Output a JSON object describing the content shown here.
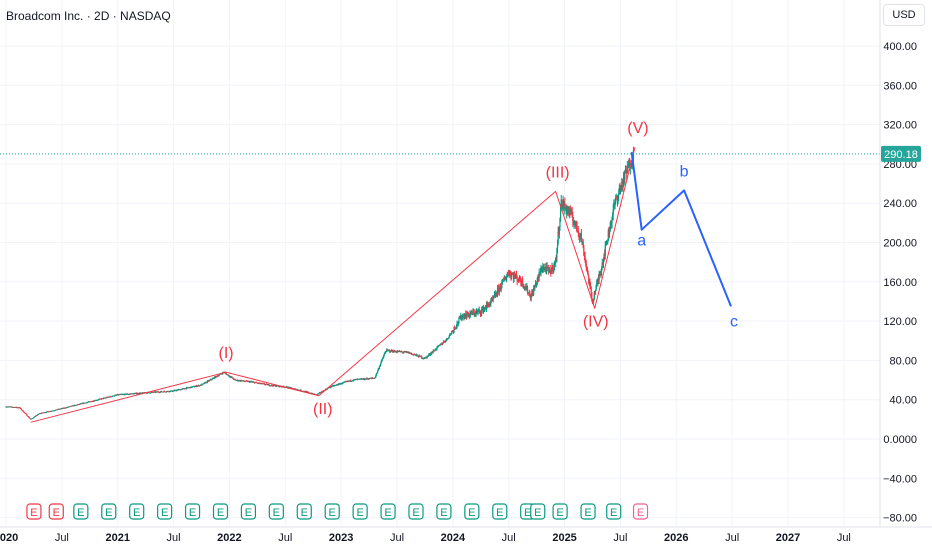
{
  "header": {
    "title": "Broadcom Inc. · 2D · NASDAQ",
    "currency": "USD"
  },
  "price_tag": {
    "value": "290.18",
    "color": "#26a69a"
  },
  "colors": {
    "impulse": "#f23645",
    "correction": "#2962ff",
    "up": "#089981",
    "down": "#f23645",
    "earn": "#089981",
    "earn_upcoming": "#f06292",
    "grid": "#f0f3fa"
  },
  "event_markers": [
    {
      "date": 2020.25,
      "label": "E",
      "kind": "red"
    },
    {
      "date": 2020.45,
      "label": "E",
      "kind": "red"
    },
    {
      "date": 2020.67,
      "label": "E",
      "kind": "green"
    },
    {
      "date": 2020.92,
      "label": "E",
      "kind": "green"
    },
    {
      "date": 2021.17,
      "label": "E",
      "kind": "green"
    },
    {
      "date": 2021.42,
      "label": "E",
      "kind": "green"
    },
    {
      "date": 2021.67,
      "label": "E",
      "kind": "green"
    },
    {
      "date": 2021.92,
      "label": "E",
      "kind": "green"
    },
    {
      "date": 2022.17,
      "label": "E",
      "kind": "green"
    },
    {
      "date": 2022.42,
      "label": "E",
      "kind": "green"
    },
    {
      "date": 2022.67,
      "label": "E",
      "kind": "green"
    },
    {
      "date": 2022.92,
      "label": "E",
      "kind": "green"
    },
    {
      "date": 2023.17,
      "label": "E",
      "kind": "green"
    },
    {
      "date": 2023.42,
      "label": "E",
      "kind": "green"
    },
    {
      "date": 2023.67,
      "label": "E",
      "kind": "green"
    },
    {
      "date": 2023.92,
      "label": "E",
      "kind": "green"
    },
    {
      "date": 2024.17,
      "label": "E",
      "kind": "green"
    },
    {
      "date": 2024.42,
      "label": "E",
      "kind": "green"
    },
    {
      "date": 2024.67,
      "label": "E",
      "kind": "green"
    },
    {
      "date": 2024.76,
      "label": "E",
      "kind": "green"
    },
    {
      "date": 2024.96,
      "label": "E",
      "kind": "green"
    },
    {
      "date": 2025.21,
      "label": "E",
      "kind": "green"
    },
    {
      "date": 2025.44,
      "label": "E",
      "kind": "green"
    },
    {
      "date": 2025.68,
      "label": "E",
      "kind": "upcoming"
    }
  ],
  "chart_data": {
    "type": "line",
    "title": "Broadcom Inc. · 2D · NASDAQ",
    "ylabel": "USD",
    "xlim": [
      2020.0,
      2027.8
    ],
    "ylim": [
      -82,
      440
    ],
    "log_scale": false,
    "grid": true,
    "y_ticks": [
      400,
      360,
      320,
      280,
      240,
      200,
      160,
      120,
      80,
      40,
      0,
      -40,
      -80
    ],
    "y_tick_labels": [
      "400.00",
      "360.00",
      "320.00",
      "280.00",
      "240.00",
      "200.00",
      "160.00",
      "120.00",
      "80.00",
      "40.00",
      "0.0000",
      "−40.00",
      "−80.00"
    ],
    "x_ticks": [
      {
        "x": 2020.0,
        "label": "2020"
      },
      {
        "x": 2020.5,
        "label": "Jul"
      },
      {
        "x": 2021.0,
        "label": "2021"
      },
      {
        "x": 2021.5,
        "label": "Jul"
      },
      {
        "x": 2022.0,
        "label": "2022"
      },
      {
        "x": 2022.5,
        "label": "Jul"
      },
      {
        "x": 2023.0,
        "label": "2023"
      },
      {
        "x": 2023.5,
        "label": "Jul"
      },
      {
        "x": 2024.0,
        "label": "2024"
      },
      {
        "x": 2024.5,
        "label": "Jul"
      },
      {
        "x": 2025.0,
        "label": "2025"
      },
      {
        "x": 2025.5,
        "label": "Jul"
      },
      {
        "x": 2026.0,
        "label": "2026"
      },
      {
        "x": 2026.5,
        "label": "Jul"
      },
      {
        "x": 2027.0,
        "label": "2027"
      },
      {
        "x": 2027.5,
        "label": "Jul"
      }
    ],
    "last_price": 290.18,
    "price_path": [
      [
        2020.0,
        33
      ],
      [
        2020.12,
        32
      ],
      [
        2020.18,
        25
      ],
      [
        2020.22,
        20
      ],
      [
        2020.3,
        26
      ],
      [
        2020.5,
        31
      ],
      [
        2020.75,
        38
      ],
      [
        2021.0,
        45
      ],
      [
        2021.25,
        47
      ],
      [
        2021.5,
        49
      ],
      [
        2021.75,
        55
      ],
      [
        2021.95,
        68
      ],
      [
        2022.05,
        60
      ],
      [
        2022.2,
        58
      ],
      [
        2022.35,
        55
      ],
      [
        2022.5,
        53
      ],
      [
        2022.62,
        50
      ],
      [
        2022.78,
        45
      ],
      [
        2022.9,
        53
      ],
      [
        2023.1,
        60
      ],
      [
        2023.3,
        62
      ],
      [
        2023.4,
        90
      ],
      [
        2023.6,
        88
      ],
      [
        2023.75,
        82
      ],
      [
        2023.95,
        102
      ],
      [
        2024.08,
        125
      ],
      [
        2024.25,
        130
      ],
      [
        2024.35,
        140
      ],
      [
        2024.5,
        170
      ],
      [
        2024.62,
        160
      ],
      [
        2024.7,
        145
      ],
      [
        2024.8,
        175
      ],
      [
        2024.87,
        170
      ],
      [
        2024.92,
        180
      ],
      [
        2024.97,
        240
      ],
      [
        2025.05,
        230
      ],
      [
        2025.15,
        205
      ],
      [
        2025.25,
        140
      ],
      [
        2025.33,
        175
      ],
      [
        2025.45,
        240
      ],
      [
        2025.58,
        280
      ],
      [
        2025.62,
        290.18
      ]
    ],
    "wave_labels": [
      {
        "label": "(I)",
        "x": 2021.97,
        "y": 68
      },
      {
        "label": "(II)",
        "x": 2022.8,
        "y": 44
      },
      {
        "label": "(III)",
        "x": 2024.92,
        "y": 252
      },
      {
        "label": "(IV)",
        "x": 2025.27,
        "y": 133
      },
      {
        "label": "(V)",
        "x": 2025.63,
        "y": 297
      },
      {
        "label": "a",
        "x": 2025.69,
        "y": 213
      },
      {
        "label": "b",
        "x": 2026.07,
        "y": 253
      },
      {
        "label": "c",
        "x": 2026.49,
        "y": 135
      }
    ],
    "series": [
      {
        "role": "impulse",
        "points": [
          [
            2020.22,
            17
          ],
          [
            2021.97,
            68
          ],
          [
            2022.8,
            44
          ],
          [
            2024.92,
            252
          ],
          [
            2025.27,
            133
          ],
          [
            2025.63,
            297
          ]
        ]
      },
      {
        "role": "correction",
        "points": [
          [
            2025.6,
            292
          ],
          [
            2025.69,
            213
          ],
          [
            2026.07,
            253
          ],
          [
            2026.49,
            135
          ]
        ]
      }
    ]
  }
}
